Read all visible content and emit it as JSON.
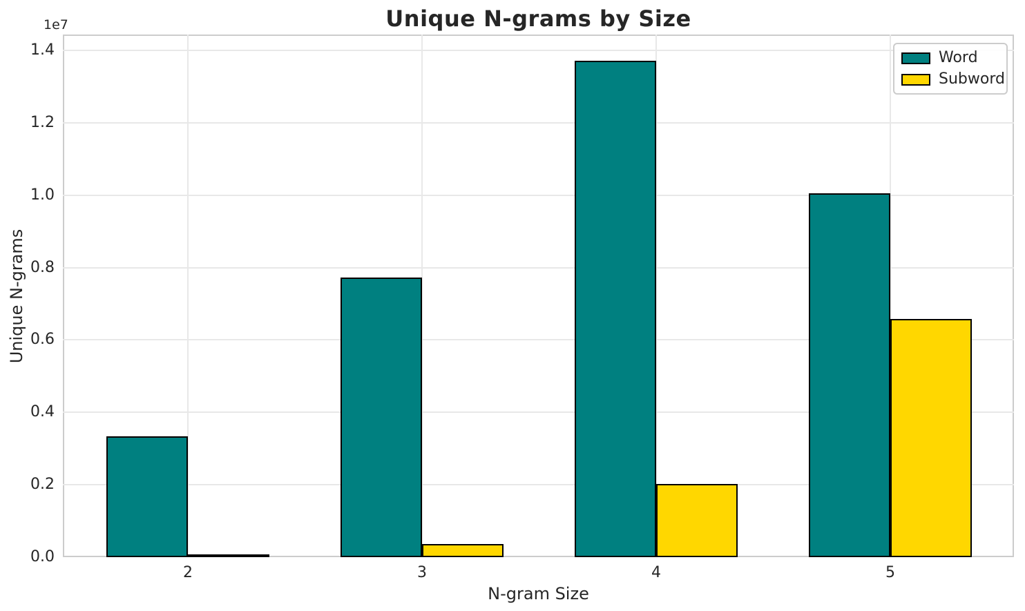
{
  "chart_data": {
    "type": "bar",
    "title": "Unique N-grams by Size",
    "xlabel": "N-gram Size",
    "ylabel": "Unique N-grams",
    "offset_text": "1e7",
    "categories": [
      "2",
      "3",
      "4",
      "5"
    ],
    "series": [
      {
        "name": "Word",
        "color": "#008080",
        "values": [
          3340000,
          7720000,
          13720000,
          10060000
        ]
      },
      {
        "name": "Subword",
        "color": "#FFD700",
        "values": [
          40000,
          365000,
          2020000,
          6590000
        ]
      }
    ],
    "ylim": [
      0,
      14440000
    ],
    "yticks": {
      "values": [
        0,
        2000000,
        4000000,
        6000000,
        8000000,
        10000000,
        12000000,
        14000000
      ],
      "labels": [
        "0.0",
        "0.2",
        "0.4",
        "0.6",
        "0.8",
        "1.0",
        "1.2",
        "1.4"
      ]
    },
    "bar_edge_color": "#000000",
    "grid": true,
    "legend_position": "upper right"
  }
}
